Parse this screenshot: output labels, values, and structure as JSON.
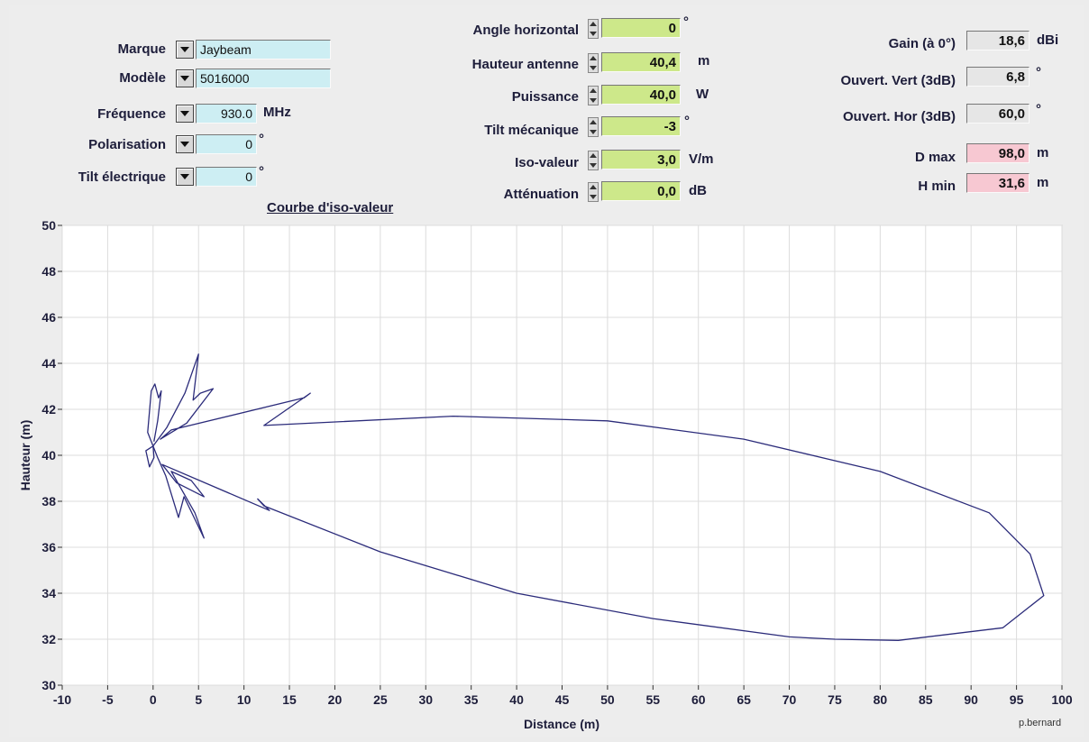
{
  "left_panel": {
    "marque": {
      "label": "Marque",
      "value": "Jaybeam"
    },
    "modele": {
      "label": "Modèle",
      "value": "5016000"
    },
    "frequence": {
      "label": "Fréquence",
      "value": "930.0",
      "unit": "MHz"
    },
    "polarisation": {
      "label": "Polarisation",
      "value": "0",
      "unit": "°"
    },
    "tilt_electrique": {
      "label": "Tilt électrique",
      "value": "0",
      "unit": "°"
    }
  },
  "middle_panel": {
    "angle_horizontal": {
      "label": "Angle horizontal",
      "value": "0",
      "unit": "°"
    },
    "hauteur_antenne": {
      "label": "Hauteur antenne",
      "value": "40,4",
      "unit": "m"
    },
    "puissance": {
      "label": "Puissance",
      "value": "40,0",
      "unit": "W"
    },
    "tilt_mecanique": {
      "label": "Tilt mécanique",
      "value": "-3",
      "unit": "°"
    },
    "iso_valeur": {
      "label": "Iso-valeur",
      "value": "3,0",
      "unit": "V/m"
    },
    "attenuation": {
      "label": "Atténuation",
      "value": "0,0",
      "unit": "dB"
    }
  },
  "right_panel": {
    "gain": {
      "label": "Gain (à 0°)",
      "value": "18,6",
      "unit": "dBi"
    },
    "ouvert_vert": {
      "label": "Ouvert. Vert (3dB)",
      "value": "6,8",
      "unit": "°"
    },
    "ouvert_hor": {
      "label": "Ouvert. Hor (3dB)",
      "value": "60,0",
      "unit": "°"
    },
    "d_max": {
      "label": "D max",
      "value": "98,0",
      "unit": "m"
    },
    "h_min": {
      "label": "H min",
      "value": "31,6",
      "unit": "m"
    }
  },
  "curve_title": "Courbe d'iso-valeur",
  "credit": "p.bernard",
  "chart_data": {
    "type": "line",
    "xlabel": "Distance (m)",
    "ylabel": "Hauteur (m)",
    "xlim": [
      -10,
      100
    ],
    "ylim": [
      30,
      50
    ],
    "xticks": [
      -10,
      -5,
      0,
      5,
      10,
      15,
      20,
      25,
      30,
      35,
      40,
      45,
      50,
      55,
      60,
      65,
      70,
      75,
      80,
      85,
      90,
      95,
      100
    ],
    "yticks": [
      30,
      32,
      34,
      36,
      38,
      40,
      42,
      44,
      46,
      48,
      50
    ],
    "grid": true,
    "line_color": "#2b2b7a",
    "series": [
      {
        "points": [
          [
            0,
            40.4
          ],
          [
            1.5,
            41.2
          ],
          [
            3.5,
            42.7
          ],
          [
            5.0,
            44.4
          ],
          [
            4.4,
            42.4
          ],
          [
            5.2,
            42.7
          ],
          [
            6.6,
            42.9
          ],
          [
            3.7,
            41.4
          ],
          [
            0.8,
            40.7
          ],
          [
            2.0,
            41.1
          ],
          [
            16.6,
            42.5
          ],
          [
            17.3,
            42.7
          ],
          [
            12.2,
            41.3
          ],
          [
            33,
            41.7
          ],
          [
            50,
            41.5
          ],
          [
            65,
            40.7
          ],
          [
            80,
            39.3
          ],
          [
            92,
            37.5
          ],
          [
            96.5,
            35.7
          ],
          [
            98,
            33.9
          ],
          [
            93.5,
            32.5
          ],
          [
            82,
            31.95
          ],
          [
            75,
            32.0
          ],
          [
            70,
            32.1
          ],
          [
            55,
            32.9
          ],
          [
            40,
            34.0
          ],
          [
            25,
            35.8
          ],
          [
            12.2,
            37.8
          ],
          [
            11.5,
            38.1
          ],
          [
            12.8,
            37.6
          ],
          [
            1.0,
            39.6
          ],
          [
            2.6,
            38.8
          ],
          [
            5.6,
            38.2
          ],
          [
            4.2,
            38.9
          ],
          [
            2.0,
            39.3
          ],
          [
            4.6,
            37.5
          ],
          [
            5.6,
            36.4
          ],
          [
            3.4,
            38.2
          ],
          [
            2.8,
            37.3
          ],
          [
            1.4,
            39.1
          ],
          [
            0.5,
            39.9
          ],
          [
            0,
            40.4
          ]
        ]
      },
      {
        "points": [
          [
            0,
            40.4
          ],
          [
            -0.6,
            41.0
          ],
          [
            -0.2,
            42.8
          ],
          [
            0.2,
            43.1
          ],
          [
            0.6,
            42.5
          ],
          [
            0.9,
            42.8
          ],
          [
            0.5,
            41.5
          ],
          [
            0.1,
            40.6
          ]
        ]
      },
      {
        "points": [
          [
            0,
            40.4
          ],
          [
            -0.8,
            40.2
          ],
          [
            -0.4,
            39.5
          ],
          [
            0.1,
            39.9
          ],
          [
            0,
            40.4
          ]
        ]
      }
    ]
  }
}
